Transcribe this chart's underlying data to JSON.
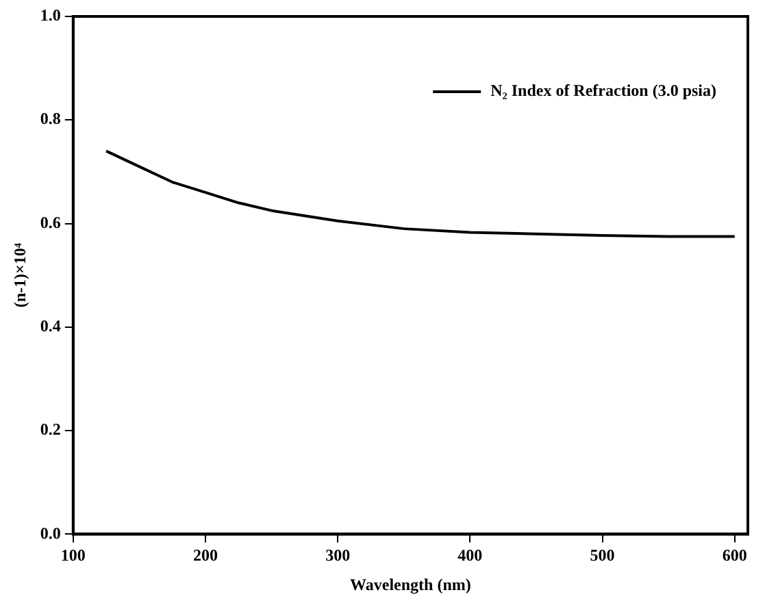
{
  "chart_data": {
    "type": "line",
    "xlabel": "Wavelength (nm)",
    "ylabel": "(n-1)×10⁴",
    "x": [
      125,
      150,
      175,
      200,
      225,
      250,
      300,
      350,
      400,
      450,
      500,
      550,
      600
    ],
    "series": [
      {
        "name": "N₂ Index of Refraction (3.0 psia)",
        "color": "#000000",
        "values": [
          0.74,
          0.71,
          0.68,
          0.66,
          0.64,
          0.625,
          0.605,
          0.59,
          0.583,
          0.58,
          0.577,
          0.575,
          0.575
        ]
      }
    ],
    "xlim": [
      100,
      610
    ],
    "xticks": [
      100,
      200,
      300,
      400,
      500,
      600
    ],
    "ylim": [
      0,
      1
    ],
    "yticks": [
      {
        "value": 0,
        "label": "0.0"
      },
      {
        "value": 0.2,
        "label": "0.2"
      },
      {
        "value": 0.4,
        "label": "0.4"
      },
      {
        "value": 0.6,
        "label": "0.6"
      },
      {
        "value": 0.8,
        "label": "0.8"
      },
      {
        "value": 1,
        "label": "1.0"
      }
    ],
    "grid": false,
    "legend": "top right",
    "marker": "none",
    "line_style": "solid"
  }
}
